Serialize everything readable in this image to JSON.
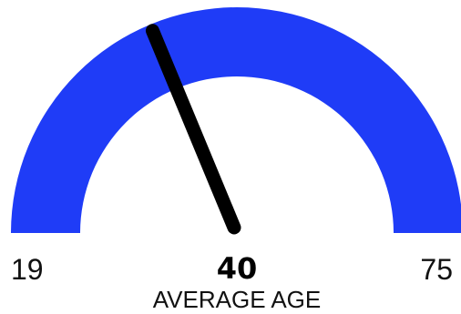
{
  "chart_data": {
    "type": "gauge",
    "min": 19,
    "max": 75,
    "value": 40,
    "label": "AVERAGE AGE",
    "min_label": "19",
    "max_label": "75",
    "value_label": "40",
    "colors": {
      "band": "#1f3cf7",
      "needle": "#000000",
      "background": "#ffffff"
    }
  }
}
